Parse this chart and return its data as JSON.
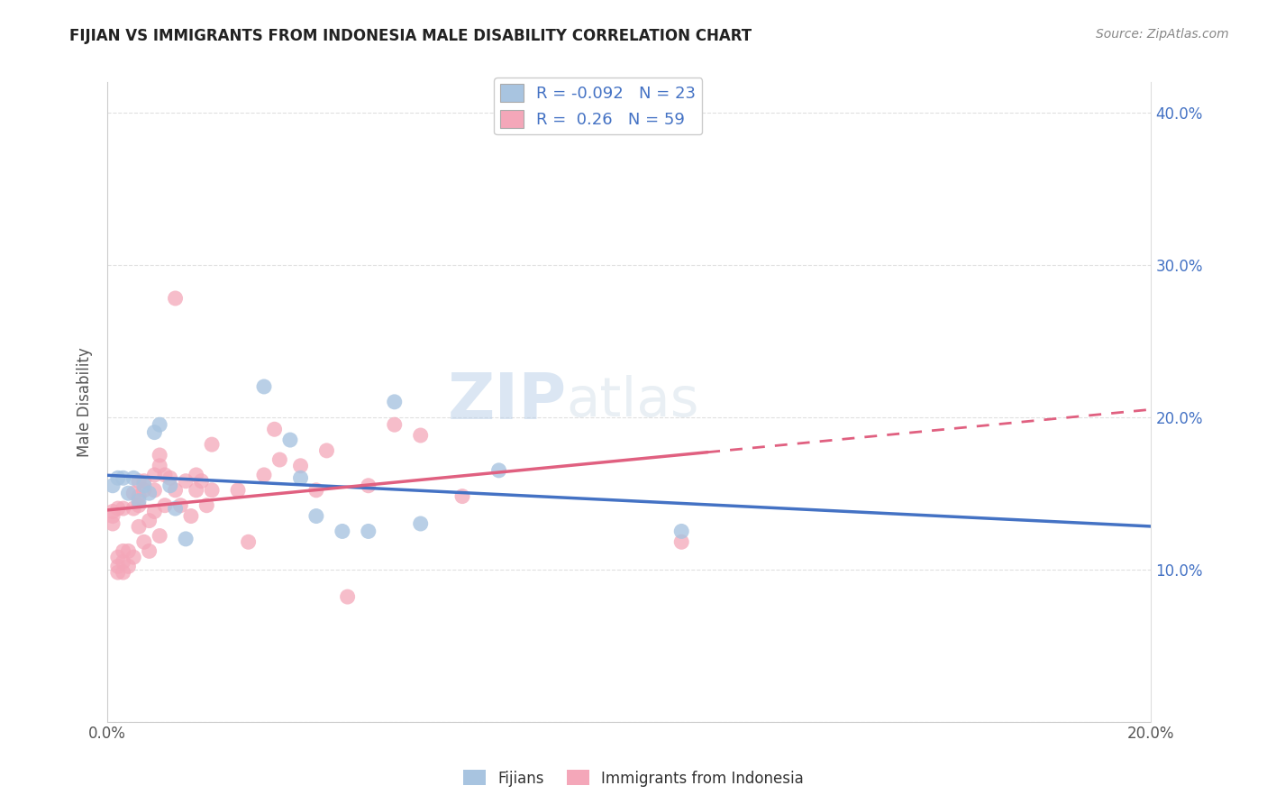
{
  "title": "FIJIAN VS IMMIGRANTS FROM INDONESIA MALE DISABILITY CORRELATION CHART",
  "source": "Source: ZipAtlas.com",
  "ylabel_label": "Male Disability",
  "xlim": [
    0.0,
    0.2
  ],
  "ylim": [
    0.0,
    0.42
  ],
  "xticks": [
    0.0,
    0.05,
    0.1,
    0.15,
    0.2
  ],
  "xtick_labels": [
    "0.0%",
    "",
    "",
    "",
    "20.0%"
  ],
  "yticks": [
    0.0,
    0.1,
    0.2,
    0.3,
    0.4
  ],
  "ytick_labels_right": [
    "",
    "10.0%",
    "20.0%",
    "30.0%",
    "40.0%"
  ],
  "fijians_R": -0.092,
  "fijians_N": 23,
  "indonesia_R": 0.26,
  "indonesia_N": 59,
  "fijians_color": "#a8c4e0",
  "indonesia_color": "#f4a7b9",
  "fijians_line_color": "#4472c4",
  "indonesia_line_color": "#e06080",
  "legend_fijians": "Fijians",
  "legend_indonesia": "Immigrants from Indonesia",
  "watermark_zip": "ZIP",
  "watermark_atlas": "atlas",
  "fijians_x": [
    0.001,
    0.002,
    0.003,
    0.004,
    0.005,
    0.006,
    0.007,
    0.008,
    0.009,
    0.01,
    0.012,
    0.013,
    0.015,
    0.03,
    0.035,
    0.037,
    0.04,
    0.045,
    0.05,
    0.055,
    0.06,
    0.075,
    0.11
  ],
  "fijians_y": [
    0.155,
    0.16,
    0.16,
    0.15,
    0.16,
    0.145,
    0.155,
    0.15,
    0.19,
    0.195,
    0.155,
    0.14,
    0.12,
    0.22,
    0.185,
    0.16,
    0.135,
    0.125,
    0.125,
    0.21,
    0.13,
    0.165,
    0.125
  ],
  "indonesia_x": [
    0.001,
    0.001,
    0.001,
    0.002,
    0.002,
    0.002,
    0.002,
    0.003,
    0.003,
    0.003,
    0.003,
    0.004,
    0.004,
    0.005,
    0.005,
    0.005,
    0.006,
    0.006,
    0.006,
    0.006,
    0.007,
    0.007,
    0.007,
    0.008,
    0.008,
    0.009,
    0.009,
    0.009,
    0.01,
    0.01,
    0.01,
    0.011,
    0.011,
    0.012,
    0.013,
    0.013,
    0.014,
    0.015,
    0.016,
    0.017,
    0.017,
    0.018,
    0.019,
    0.02,
    0.02,
    0.025,
    0.027,
    0.03,
    0.032,
    0.033,
    0.037,
    0.04,
    0.042,
    0.046,
    0.05,
    0.055,
    0.06,
    0.068,
    0.11
  ],
  "indonesia_y": [
    0.13,
    0.135,
    0.138,
    0.098,
    0.102,
    0.108,
    0.14,
    0.098,
    0.105,
    0.112,
    0.14,
    0.102,
    0.112,
    0.108,
    0.14,
    0.15,
    0.128,
    0.142,
    0.148,
    0.158,
    0.118,
    0.152,
    0.158,
    0.112,
    0.132,
    0.138,
    0.152,
    0.162,
    0.122,
    0.168,
    0.175,
    0.142,
    0.162,
    0.16,
    0.152,
    0.278,
    0.142,
    0.158,
    0.135,
    0.152,
    0.162,
    0.158,
    0.142,
    0.182,
    0.152,
    0.152,
    0.118,
    0.162,
    0.192,
    0.172,
    0.168,
    0.152,
    0.178,
    0.082,
    0.155,
    0.195,
    0.188,
    0.148,
    0.118
  ]
}
